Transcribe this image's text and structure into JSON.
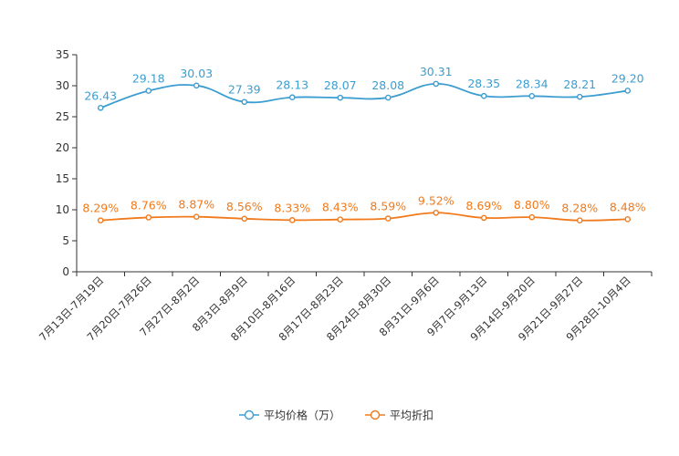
{
  "chart_data": {
    "type": "line",
    "categories": [
      "7月13日-7月19日",
      "7月20日-7月26日",
      "7月27日-8月2日",
      "8月3日-8月9日",
      "8月10日-8月16日",
      "8月17日-8月23日",
      "8月24日-8月30日",
      "8月31日-9月6日",
      "9月7日-9月13日",
      "9月14日-9月20日",
      "9月21日-9月27日",
      "9月28日-10月4日"
    ],
    "ylim": [
      0,
      35
    ],
    "yticks": [
      0,
      5,
      10,
      15,
      20,
      25,
      30,
      35
    ],
    "grid": false,
    "legend_position": "bottom",
    "series": [
      {
        "name": "平均价格（万）",
        "color": "#3c9dd0",
        "values": [
          26.43,
          29.18,
          30.03,
          27.39,
          28.13,
          28.07,
          28.08,
          30.31,
          28.35,
          28.34,
          28.21,
          29.2
        ],
        "labels": [
          "26.43",
          "29.18",
          "30.03",
          "27.39",
          "28.13",
          "28.07",
          "28.08",
          "30.31",
          "28.35",
          "28.34",
          "28.21",
          "29.20"
        ]
      },
      {
        "name": "平均折扣",
        "color": "#f07a1c",
        "values": [
          8.29,
          8.76,
          8.87,
          8.56,
          8.33,
          8.43,
          8.59,
          9.52,
          8.69,
          8.8,
          8.28,
          8.48
        ],
        "labels": [
          "8.29%",
          "8.76%",
          "8.87%",
          "8.56%",
          "8.33%",
          "8.43%",
          "8.59%",
          "9.52%",
          "8.69%",
          "8.80%",
          "8.28%",
          "8.48%"
        ]
      }
    ]
  }
}
